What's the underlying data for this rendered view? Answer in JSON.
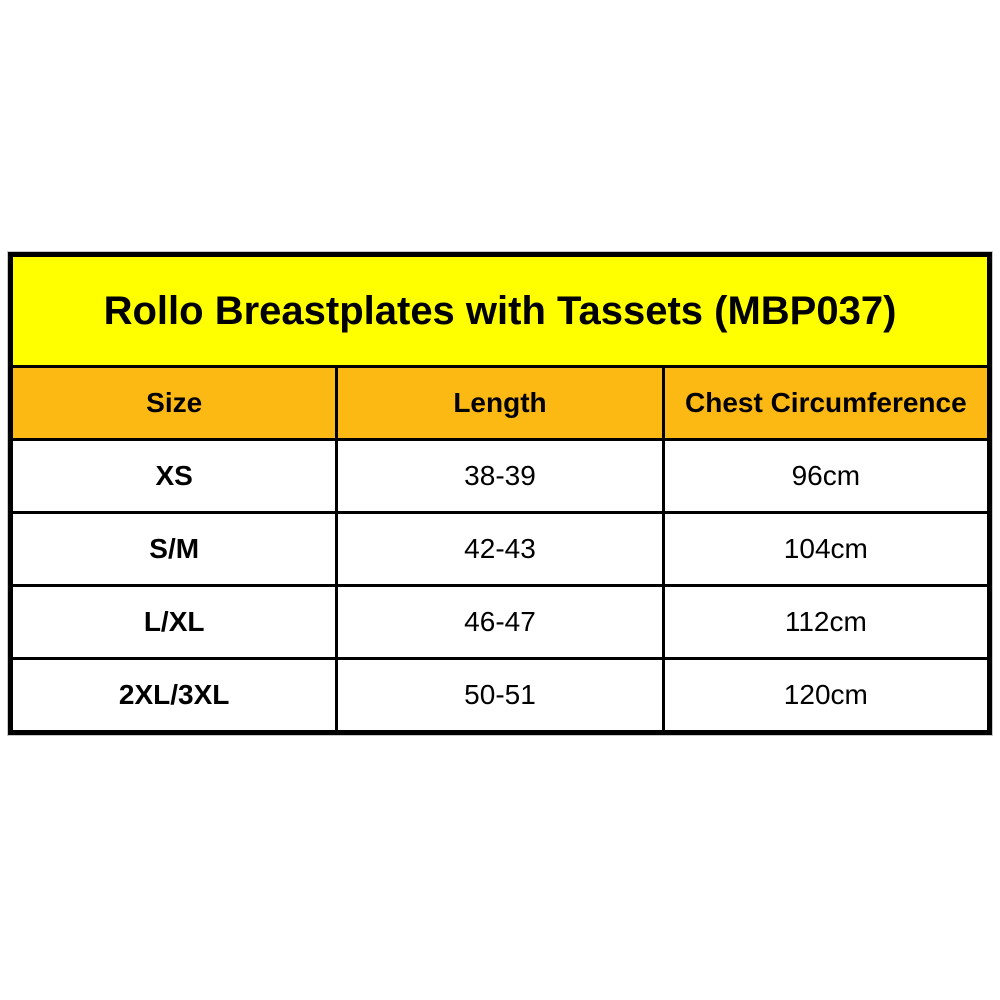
{
  "chart_data": {
    "type": "table",
    "title": "Rollo Breastplates with Tassets (MBP037)",
    "columns": [
      "Size",
      "Length",
      "Chest Circumference"
    ],
    "rows": [
      [
        "XS",
        "38-39",
        "96cm"
      ],
      [
        "S/M",
        "42-43",
        "104cm"
      ],
      [
        "L/XL",
        "46-47",
        "112cm"
      ],
      [
        "2XL/3XL",
        "50-51",
        "120cm"
      ]
    ]
  },
  "table": {
    "title": "Rollo Breastplates with Tassets (MBP037)",
    "headers": {
      "size": "Size",
      "length": "Length",
      "chest": "Chest Circumference"
    },
    "rows": [
      {
        "size": "XS",
        "length": "38-39",
        "chest": "96cm"
      },
      {
        "size": "S/M",
        "length": "42-43",
        "chest": "104cm"
      },
      {
        "size": "L/XL",
        "length": "46-47",
        "chest": "112cm"
      },
      {
        "size": "2XL/3XL",
        "length": "50-51",
        "chest": "120cm"
      }
    ],
    "colors": {
      "title_background": "#FFFF00",
      "header_background": "#FCB813",
      "row_background": "#FFFFFF",
      "border": "#000000",
      "text": "#000000"
    }
  }
}
